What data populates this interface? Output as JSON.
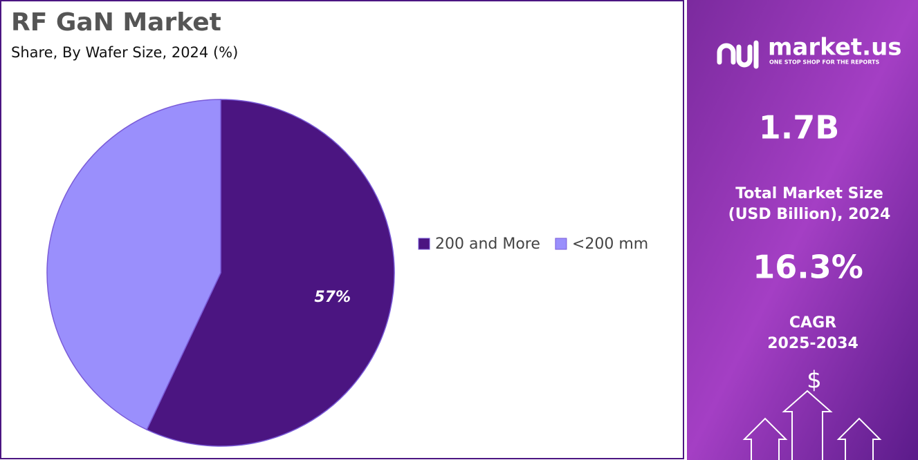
{
  "chart_data": {
    "type": "pie",
    "title": "RF GaN Market",
    "subtitle": "Share, By Wafer Size, 2024 (%)",
    "categories": [
      "200 and More",
      "<200 mm"
    ],
    "values": [
      57,
      43
    ],
    "value_labels": [
      "57%",
      null
    ],
    "colors": [
      "#4b1581",
      "#9a8ffc"
    ],
    "legend": "right"
  },
  "sidebar": {
    "brand": "market.us",
    "tagline": "ONE STOP SHOP FOR THE REPORTS",
    "market_size": "1.7B",
    "market_size_label": [
      "Total Market Size",
      "(USD Billion), 2024"
    ],
    "cagr": "16.3%",
    "cagr_label": [
      "CAGR",
      "2025-2034"
    ],
    "icon": "$"
  }
}
